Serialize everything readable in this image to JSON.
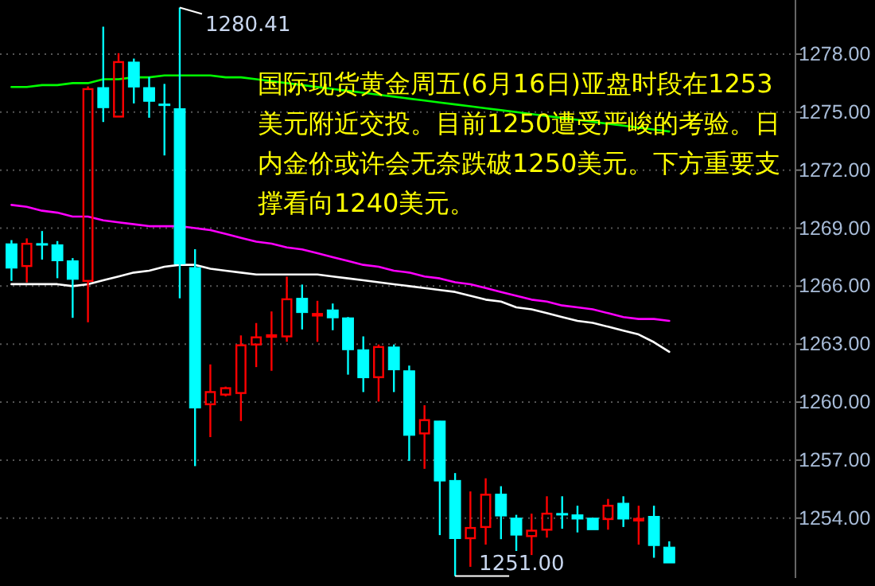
{
  "chart_data": {
    "type": "candlestick",
    "categories": [
      null,
      null,
      null,
      null,
      null,
      null,
      null,
      null,
      null,
      null,
      null,
      null,
      null,
      null,
      null,
      null,
      null,
      null,
      null,
      null,
      null,
      null,
      null,
      null,
      null,
      null,
      null,
      null,
      null,
      null,
      null,
      null,
      null,
      null,
      null,
      null,
      null,
      null,
      null,
      null,
      null,
      null,
      null,
      null
    ],
    "ohlc": [
      [
        1268.19,
        1268.38,
        1266.27,
        1266.93
      ],
      [
        1267.04,
        1268.47,
        1266.19,
        1268.19
      ],
      [
        1268.2,
        1268.85,
        1267.37,
        1268.18
      ],
      [
        1268.14,
        1268.33,
        1266.41,
        1267.31
      ],
      [
        1267.31,
        1267.45,
        1264.36,
        1266.35
      ],
      [
        1266.27,
        1276.33,
        1264.13,
        1276.19
      ],
      [
        1276.27,
        1279.42,
        1274.49,
        1275.23
      ],
      [
        1274.77,
        1278.05,
        1274.77,
        1277.59
      ],
      [
        1277.59,
        1277.77,
        1275.45,
        1276.3
      ],
      [
        1276.27,
        1276.82,
        1274.71,
        1275.56
      ],
      [
        1275.42,
        1276.46,
        1272.76,
        1275.4
      ],
      [
        1275.18,
        1280.41,
        1265.37,
        1267.15
      ],
      [
        1266.96,
        1267.91,
        1256.69,
        1259.7
      ],
      [
        1259.89,
        1261.95,
        1258.19,
        1260.52
      ],
      [
        1260.39,
        1260.8,
        1260.3,
        1260.72
      ],
      [
        1260.47,
        1263.45,
        1259.02,
        1262.94
      ],
      [
        1262.98,
        1264.09,
        1261.81,
        1263.35
      ],
      [
        1263.44,
        1264.69,
        1261.62,
        1263.46
      ],
      [
        1263.4,
        1266.49,
        1263.12,
        1265.32
      ],
      [
        1265.37,
        1266.08,
        1263.76,
        1264.63
      ],
      [
        1264.53,
        1265.24,
        1263.12,
        1264.56
      ],
      [
        1264.77,
        1265.1,
        1263.72,
        1264.36
      ],
      [
        1264.36,
        1264.4,
        1261.42,
        1262.71
      ],
      [
        1262.71,
        1263.4,
        1260.52,
        1261.26
      ],
      [
        1261.29,
        1262.98,
        1260.03,
        1262.85
      ],
      [
        1262.85,
        1262.98,
        1260.52,
        1261.67
      ],
      [
        1261.62,
        1261.89,
        1256.96,
        1258.28
      ],
      [
        1258.38,
        1259.84,
        1256.55,
        1259.07
      ],
      [
        1259.02,
        1259.03,
        1253.12,
        1255.92
      ],
      [
        1255.95,
        1256.33,
        1251.0,
        1252.94
      ],
      [
        1252.96,
        1255.38,
        1251.48,
        1253.49
      ],
      [
        1253.54,
        1256.06,
        1252.63,
        1255.21
      ],
      [
        1255.24,
        1255.65,
        1252.91,
        1254.11
      ],
      [
        1254.0,
        1254.17,
        1252.3,
        1253.12
      ],
      [
        1253.07,
        1254.23,
        1252.09,
        1253.35
      ],
      [
        1253.4,
        1255.13,
        1252.99,
        1254.23
      ],
      [
        1254.24,
        1255.13,
        1253.45,
        1254.22
      ],
      [
        1254.17,
        1254.64,
        1253.26,
        1253.95
      ],
      [
        1254.0,
        1254.0,
        1253.4,
        1253.4
      ],
      [
        1253.95,
        1254.99,
        1253.4,
        1254.64
      ],
      [
        1254.77,
        1255.13,
        1253.54,
        1253.95
      ],
      [
        1253.94,
        1254.64,
        1252.63,
        1253.96
      ],
      [
        1254.09,
        1254.64,
        1251.95,
        1252.58
      ],
      [
        1252.5,
        1252.8,
        1251.68,
        1251.68
      ]
    ],
    "colors": [
      "#00ffff",
      "#ff0000",
      "#00ffff",
      "#00ffff",
      "#00ffff",
      "#ff0000",
      "#00ffff",
      "#ff0000",
      "#00ffff",
      "#00ffff",
      "#00ffff",
      "#00ffff",
      "#00ffff",
      "#ff0000",
      "#ff0000",
      "#ff0000",
      "#ff0000",
      "#ff0000",
      "#ff0000",
      "#00ffff",
      "#ff0000",
      "#00ffff",
      "#00ffff",
      "#00ffff",
      "#ff0000",
      "#00ffff",
      "#00ffff",
      "#ff0000",
      "#00ffff",
      "#00ffff",
      "#ff0000",
      "#ff0000",
      "#00ffff",
      "#00ffff",
      "#ff0000",
      "#ff0000",
      "#00ffff",
      "#00ffff",
      "#00ffff",
      "#ff0000",
      "#00ffff",
      "#ff0000",
      "#00ffff",
      "#00ffff"
    ],
    "series": [
      {
        "type": "line",
        "color": "#00ff00",
        "values": [
          1276.3,
          1276.3,
          1276.4,
          1276.4,
          1276.5,
          1276.5,
          1276.7,
          1276.7,
          1276.8,
          1276.8,
          1276.9,
          1276.9,
          1276.9,
          1276.9,
          1276.8,
          1276.8,
          1276.7,
          1276.6,
          1276.5,
          1276.4,
          1276.3,
          1276.2,
          1276.1,
          1276.0,
          1275.9,
          1275.8,
          1275.7,
          1275.6,
          1275.5,
          1275.4,
          1275.3,
          1275.2,
          1275.1,
          1275.0,
          1274.9,
          1274.8,
          1274.7,
          1274.6,
          1274.5,
          1274.4,
          1274.3,
          1274.2,
          1274.1,
          1274.0
        ]
      },
      {
        "type": "line",
        "color": "#ff00ff",
        "values": [
          1270.2,
          1270.1,
          1269.9,
          1269.8,
          1269.6,
          1269.6,
          1269.4,
          1269.3,
          1269.2,
          1269.1,
          1269.1,
          1269.1,
          1269.0,
          1268.9,
          1268.7,
          1268.5,
          1268.3,
          1268.2,
          1268.0,
          1267.9,
          1267.7,
          1267.5,
          1267.3,
          1267.1,
          1267.0,
          1266.8,
          1266.7,
          1266.5,
          1266.4,
          1266.2,
          1266.1,
          1265.9,
          1265.7,
          1265.5,
          1265.3,
          1265.2,
          1265.0,
          1264.9,
          1264.8,
          1264.6,
          1264.4,
          1264.3,
          1264.3,
          1264.2
        ]
      },
      {
        "type": "line",
        "color": "#ffffff",
        "values": [
          1266.1,
          1266.1,
          1266.1,
          1266.1,
          1266.0,
          1266.1,
          1266.3,
          1266.5,
          1266.7,
          1266.8,
          1267.0,
          1267.1,
          1267.1,
          1266.9,
          1266.8,
          1266.7,
          1266.6,
          1266.6,
          1266.6,
          1266.6,
          1266.6,
          1266.5,
          1266.4,
          1266.3,
          1266.2,
          1266.1,
          1266.0,
          1265.9,
          1265.8,
          1265.7,
          1265.5,
          1265.3,
          1265.2,
          1264.9,
          1264.8,
          1264.6,
          1264.4,
          1264.2,
          1264.1,
          1263.9,
          1263.7,
          1263.5,
          1263.1,
          1262.6
        ]
      }
    ],
    "ylim": [
      1250.9,
      1280.8
    ],
    "yticks": [
      {
        "value": 1254,
        "label": "1254.00"
      },
      {
        "value": 1257,
        "label": "1257.00"
      },
      {
        "value": 1260,
        "label": "1260.00"
      },
      {
        "value": 1263,
        "label": "1263.00"
      },
      {
        "value": 1266,
        "label": "1266.00"
      },
      {
        "value": 1269,
        "label": "1269.00"
      },
      {
        "value": 1272,
        "label": "1272.00"
      },
      {
        "value": 1275,
        "label": "1275.00"
      },
      {
        "value": 1278,
        "label": "1278.00"
      }
    ],
    "grid": "y",
    "tick_labels": "y",
    "annotations": [
      "1280.41",
      "1251.00",
      "国际现货黄金周五(6月16日)亚盘时段在1253美元附近交投。目前1250遭受严峻的考验。日内金价或许会无奈跌破1250美元。下方重要支撑看向1240美元。"
    ]
  }
}
